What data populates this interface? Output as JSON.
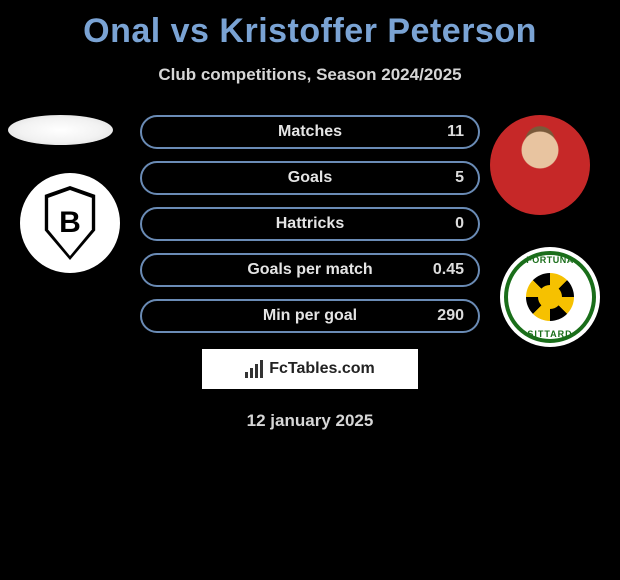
{
  "title": "Onal vs Kristoffer Peterson",
  "subtitle": "Club competitions, Season 2024/2025",
  "date": "12 january 2025",
  "footer_brand": "FcTables.com",
  "colors": {
    "title": "#7aa3d4",
    "pill_border": "#6a8bb5",
    "text": "#d6d6d6",
    "background": "#000000"
  },
  "club_left": {
    "letter": "B",
    "shield_fg": "#000000",
    "badge_bg": "#ffffff"
  },
  "club_right": {
    "top_text": "FORTUNA",
    "bottom_text": "SITTARD",
    "ring_color": "#1a6e1a",
    "sun_color": "#f6c100"
  },
  "stats": [
    {
      "label": "Matches",
      "value_right": "11"
    },
    {
      "label": "Goals",
      "value_right": "5"
    },
    {
      "label": "Hattricks",
      "value_right": "0"
    },
    {
      "label": "Goals per match",
      "value_right": "0.45"
    },
    {
      "label": "Min per goal",
      "value_right": "290"
    }
  ]
}
